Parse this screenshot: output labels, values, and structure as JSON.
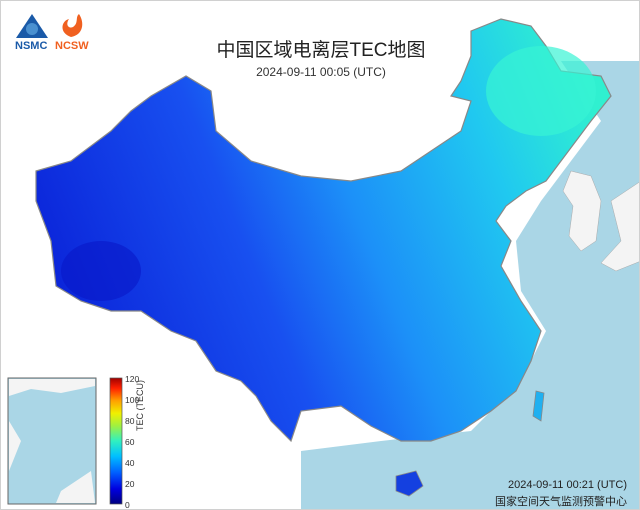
{
  "header": {
    "title": "中国区域电离层TEC地图",
    "timestamp": "2024-09-11 00:05 (UTC)"
  },
  "logos": [
    {
      "name": "NSMC",
      "color": "#1a5aa8"
    },
    {
      "name": "NCSW",
      "color": "#f06020"
    }
  ],
  "colorbar": {
    "title": "TEC (TECU)",
    "ticks": [
      "120",
      "100",
      "80",
      "60",
      "40",
      "20",
      "0"
    ],
    "range": [
      0,
      120
    ],
    "colors": [
      "#000080",
      "#0000d0",
      "#0030ff",
      "#0070ff",
      "#00b0ff",
      "#10e0e0",
      "#40f0a0",
      "#90f050",
      "#d0f020",
      "#ffe000",
      "#ffa000",
      "#ff5000",
      "#f01000",
      "#a00000"
    ]
  },
  "map": {
    "region": "China",
    "tec_west": "≈15 TECU",
    "tec_east": "≈45 TECU",
    "colors": {
      "sea": "#aad6e6",
      "low": "#0a28e0",
      "high": "#30f0d0"
    }
  },
  "footer": {
    "timestamp": "2024-09-11 00:21 (UTC)",
    "org": "国家空间天气监测预警中心"
  }
}
